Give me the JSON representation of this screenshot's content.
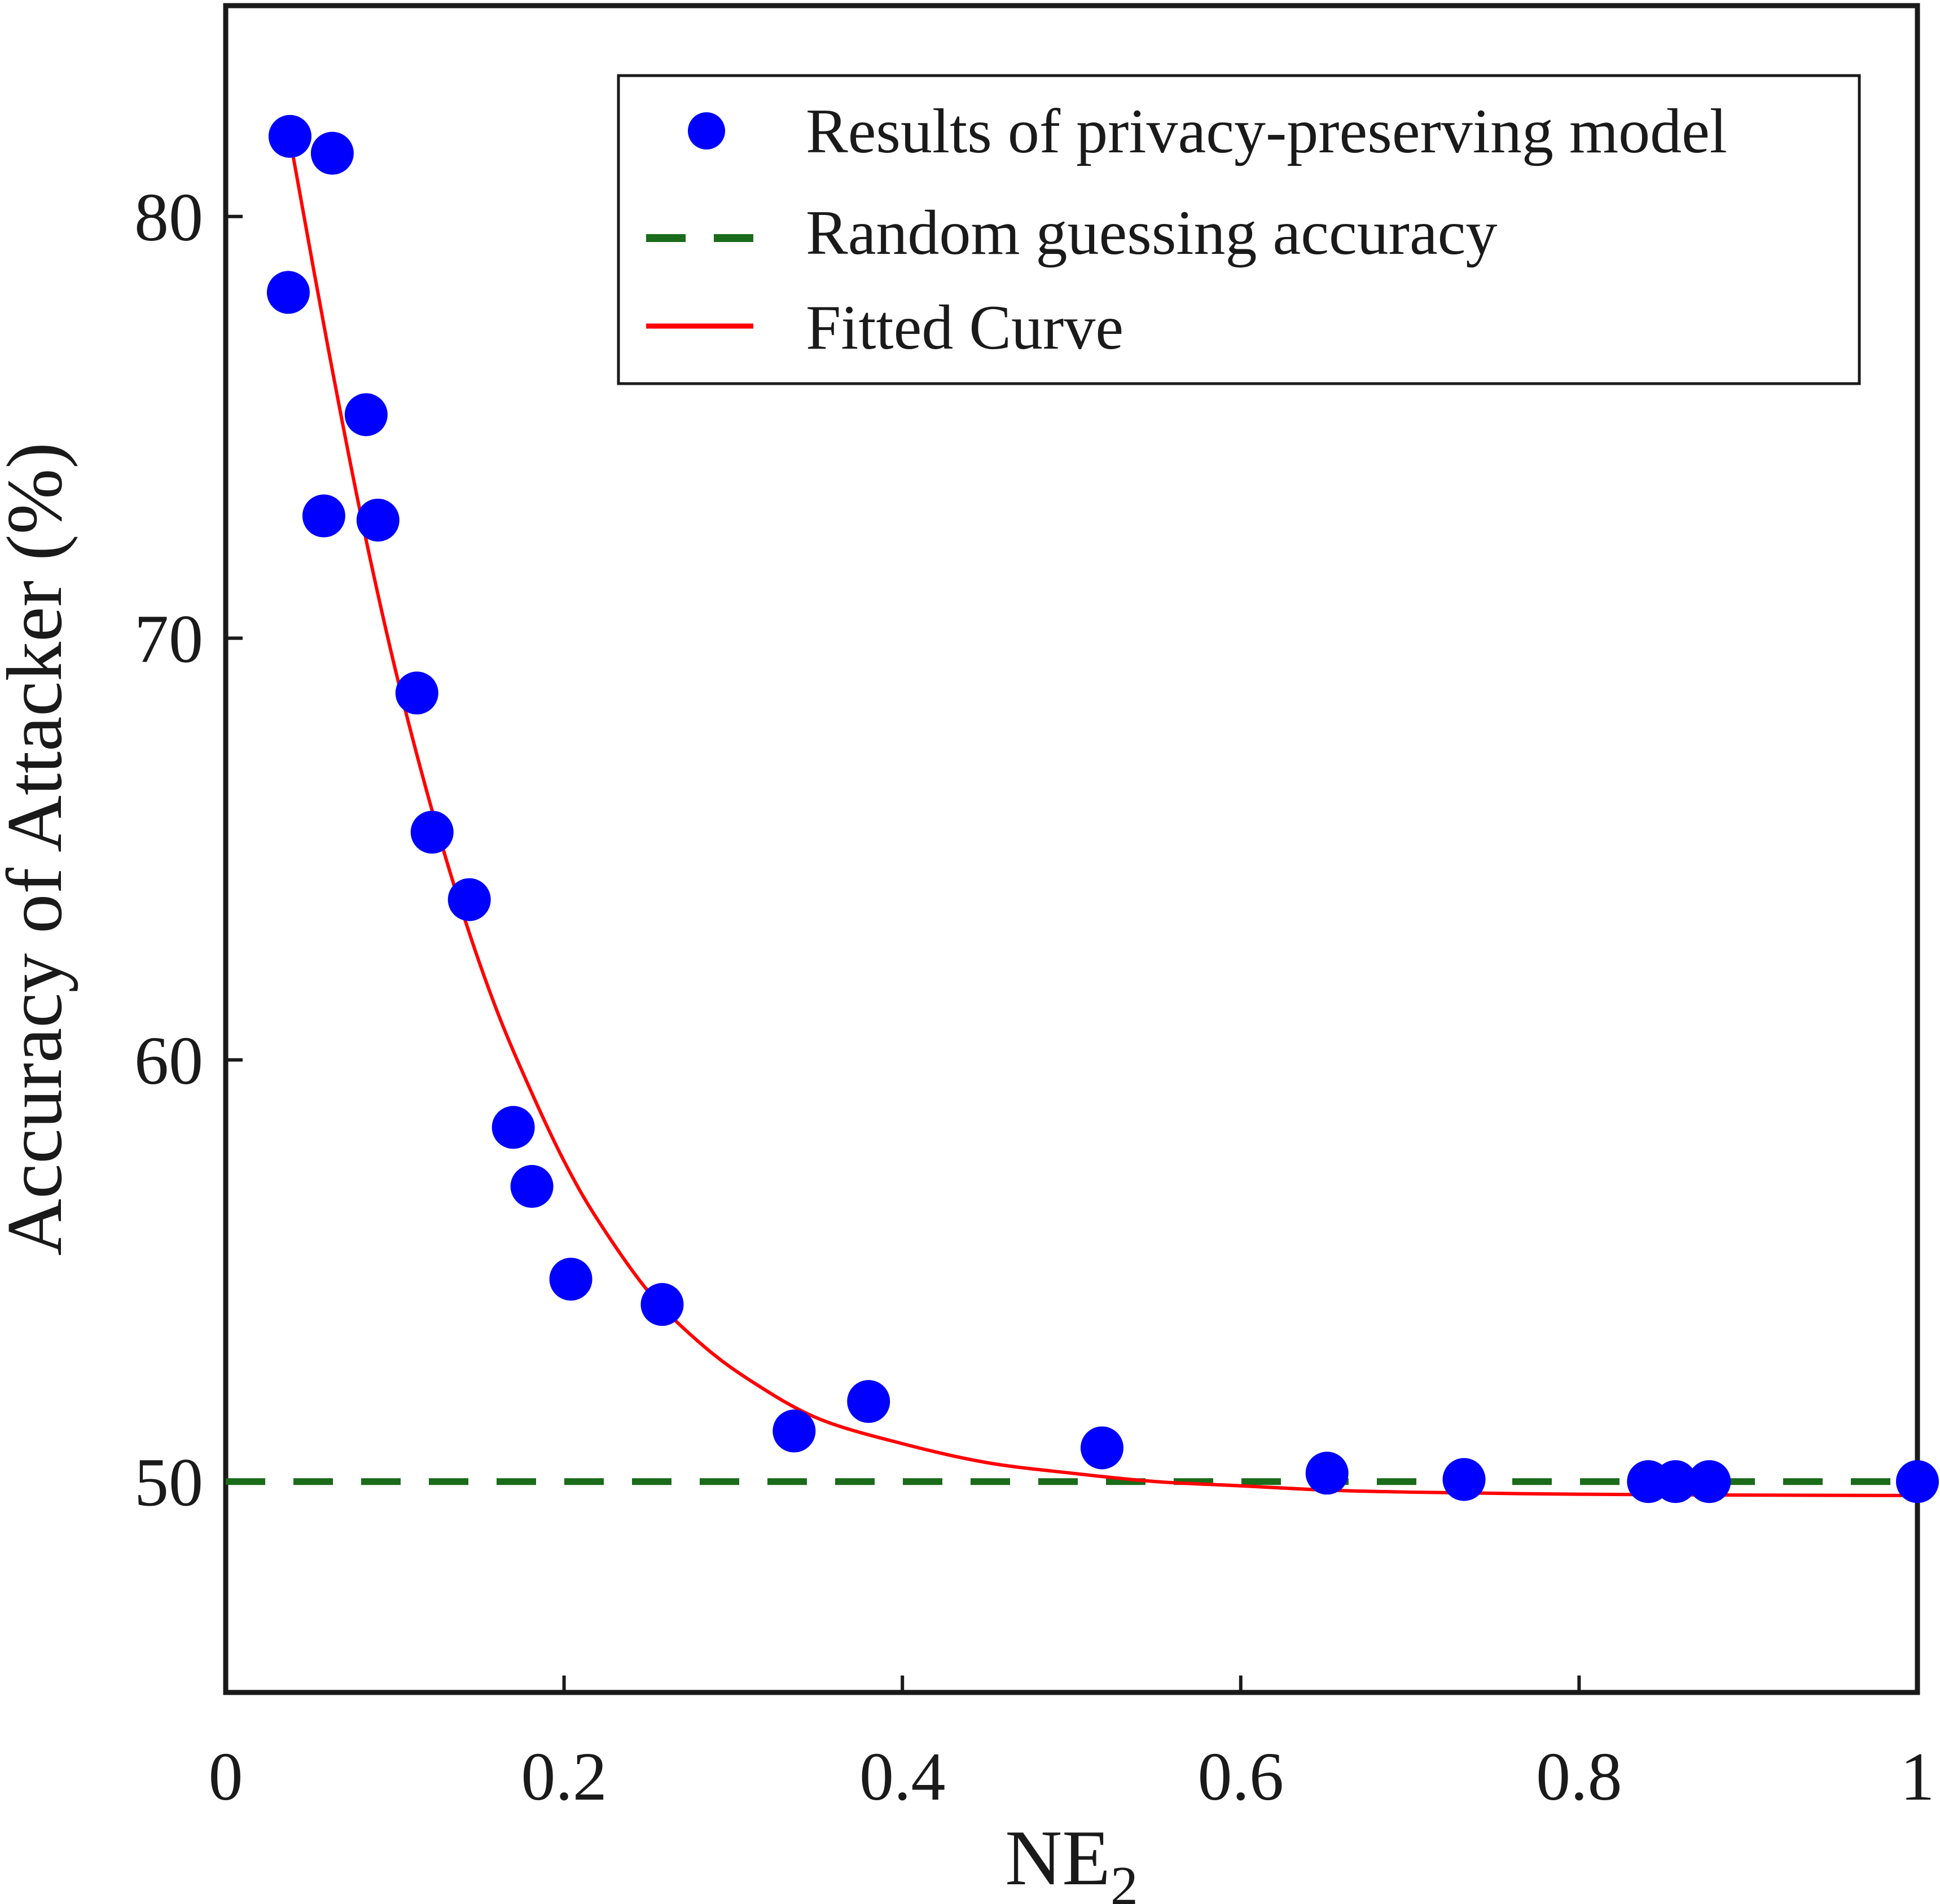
{
  "chart_data": {
    "type": "scatter",
    "xlabel": "NE",
    "xlabel_subscript": "2",
    "ylabel": "Accuracy of Attacker (%)",
    "xlim": [
      0,
      1
    ],
    "ylim": [
      45,
      85
    ],
    "xticks": [
      {
        "value": 0,
        "label": "0"
      },
      {
        "value": 0.2,
        "label": "0.2"
      },
      {
        "value": 0.4,
        "label": "0.4"
      },
      {
        "value": 0.6,
        "label": "0.6"
      },
      {
        "value": 0.8,
        "label": "0.8"
      },
      {
        "value": 1,
        "label": "1"
      }
    ],
    "yticks": [
      {
        "value": 50,
        "label": "50"
      },
      {
        "value": 60,
        "label": "60"
      },
      {
        "value": 70,
        "label": "70"
      },
      {
        "value": 80,
        "label": "80"
      }
    ],
    "grid": false,
    "legend_position": "top-right",
    "series": [
      {
        "name": "Results of privacy-preserving model",
        "kind": "scatter",
        "color": "#0000ff",
        "points": [
          {
            "x": 0.038,
            "y": 81.9
          },
          {
            "x": 0.063,
            "y": 81.5
          },
          {
            "x": 0.037,
            "y": 78.2
          },
          {
            "x": 0.083,
            "y": 75.3
          },
          {
            "x": 0.058,
            "y": 72.9
          },
          {
            "x": 0.09,
            "y": 72.8
          },
          {
            "x": 0.113,
            "y": 68.7
          },
          {
            "x": 0.122,
            "y": 65.4
          },
          {
            "x": 0.144,
            "y": 63.8
          },
          {
            "x": 0.17,
            "y": 58.4
          },
          {
            "x": 0.181,
            "y": 57.0
          },
          {
            "x": 0.204,
            "y": 54.8
          },
          {
            "x": 0.258,
            "y": 54.2
          },
          {
            "x": 0.336,
            "y": 51.2
          },
          {
            "x": 0.38,
            "y": 51.9
          },
          {
            "x": 0.518,
            "y": 50.8
          },
          {
            "x": 0.651,
            "y": 50.2
          },
          {
            "x": 0.732,
            "y": 50.05
          },
          {
            "x": 0.841,
            "y": 50.0
          },
          {
            "x": 0.857,
            "y": 50.0
          },
          {
            "x": 0.877,
            "y": 50.0
          },
          {
            "x": 1.0,
            "y": 50.0
          }
        ]
      },
      {
        "name": "Random guessing accuracy",
        "kind": "hline",
        "color": "#1a6b1a",
        "y": 50
      },
      {
        "name": "Fitted Curve",
        "kind": "line",
        "color": "#ff0000",
        "points": [
          {
            "x": 0.04,
            "y": 81.4
          },
          {
            "x": 0.06,
            "y": 77.0
          },
          {
            "x": 0.08,
            "y": 72.9
          },
          {
            "x": 0.1,
            "y": 69.3
          },
          {
            "x": 0.12,
            "y": 66.2
          },
          {
            "x": 0.14,
            "y": 63.5
          },
          {
            "x": 0.16,
            "y": 61.2
          },
          {
            "x": 0.18,
            "y": 59.3
          },
          {
            "x": 0.2,
            "y": 57.6
          },
          {
            "x": 0.22,
            "y": 56.2
          },
          {
            "x": 0.25,
            "y": 54.5
          },
          {
            "x": 0.28,
            "y": 53.3
          },
          {
            "x": 0.31,
            "y": 52.4
          },
          {
            "x": 0.35,
            "y": 51.5
          },
          {
            "x": 0.4,
            "y": 50.9
          },
          {
            "x": 0.45,
            "y": 50.45
          },
          {
            "x": 0.5,
            "y": 50.2
          },
          {
            "x": 0.55,
            "y": 50.0
          },
          {
            "x": 0.6,
            "y": 49.9
          },
          {
            "x": 0.65,
            "y": 49.8
          },
          {
            "x": 0.7,
            "y": 49.75
          },
          {
            "x": 0.8,
            "y": 49.7
          },
          {
            "x": 0.9,
            "y": 49.68
          },
          {
            "x": 1.0,
            "y": 49.67
          }
        ]
      }
    ]
  }
}
